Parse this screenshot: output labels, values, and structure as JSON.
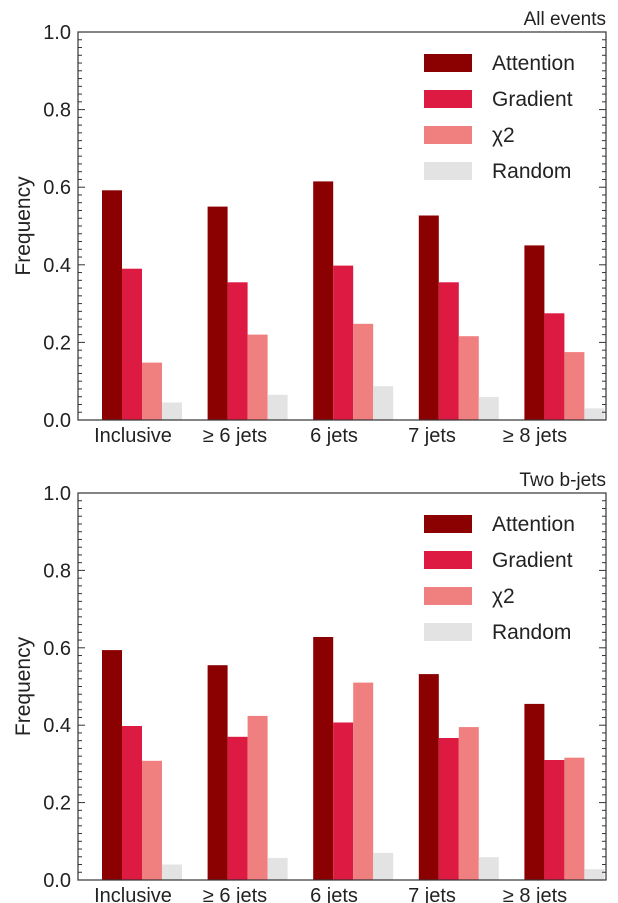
{
  "chart_data": [
    {
      "type": "bar",
      "title": "All events",
      "ylabel": "Frequency",
      "xlabel": "",
      "ylim": [
        0,
        1.0
      ],
      "yticks": [
        "0.0",
        "0.2",
        "0.4",
        "0.6",
        "0.8",
        "1.0"
      ],
      "categories": [
        "Inclusive",
        "≥ 6 jets",
        "6 jets",
        "7 jets",
        "≥ 8 jets"
      ],
      "legend_position": "top-right",
      "series": [
        {
          "name": "Attention",
          "color": "#8b0000",
          "values": [
            0.592,
            0.55,
            0.615,
            0.527,
            0.45
          ]
        },
        {
          "name": "Gradient",
          "color": "#dc1a42",
          "values": [
            0.39,
            0.355,
            0.398,
            0.355,
            0.275
          ]
        },
        {
          "name": "χ2",
          "color": "#f08080",
          "values": [
            0.148,
            0.22,
            0.248,
            0.216,
            0.175
          ]
        },
        {
          "name": "Random",
          "color": "#e3e3e3",
          "values": [
            0.045,
            0.065,
            0.087,
            0.059,
            0.03
          ]
        }
      ]
    },
    {
      "type": "bar",
      "title": "Two b-jets",
      "ylabel": "Frequency",
      "xlabel": "",
      "ylim": [
        0,
        1.0
      ],
      "yticks": [
        "0.0",
        "0.2",
        "0.4",
        "0.6",
        "0.8",
        "1.0"
      ],
      "categories": [
        "Inclusive",
        "≥ 6 jets",
        "6 jets",
        "7 jets",
        "≥ 8 jets"
      ],
      "legend_position": "top-right",
      "series": [
        {
          "name": "Attention",
          "color": "#8b0000",
          "values": [
            0.594,
            0.555,
            0.628,
            0.532,
            0.455
          ]
        },
        {
          "name": "Gradient",
          "color": "#dc1a42",
          "values": [
            0.398,
            0.37,
            0.407,
            0.367,
            0.31
          ]
        },
        {
          "name": "χ2",
          "color": "#f08080",
          "values": [
            0.308,
            0.424,
            0.51,
            0.395,
            0.316
          ]
        },
        {
          "name": "Random",
          "color": "#e3e3e3",
          "values": [
            0.04,
            0.057,
            0.07,
            0.059,
            0.028
          ]
        }
      ]
    }
  ]
}
